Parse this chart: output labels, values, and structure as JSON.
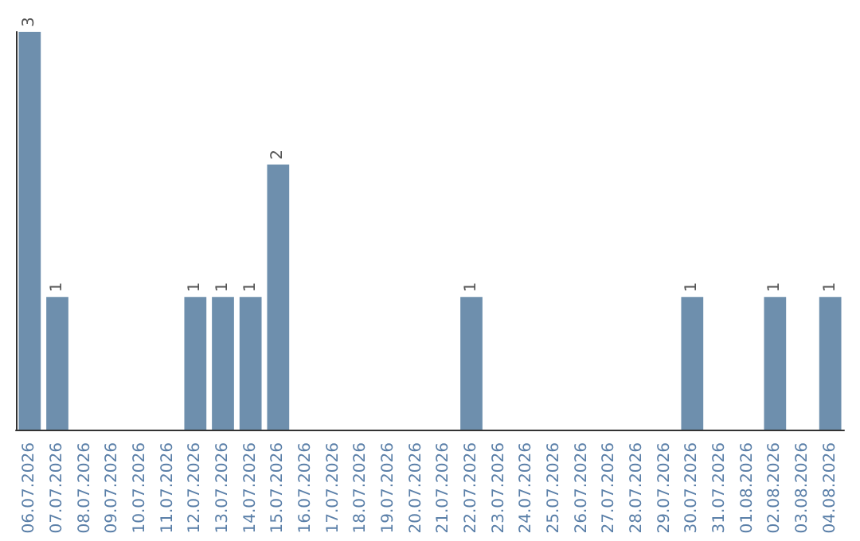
{
  "chart_data": {
    "type": "bar",
    "categories": [
      "06.07.2026",
      "07.07.2026",
      "08.07.2026",
      "09.07.2026",
      "10.07.2026",
      "11.07.2026",
      "12.07.2026",
      "13.07.2026",
      "14.07.2026",
      "15.07.2026",
      "16.07.2026",
      "17.07.2026",
      "18.07.2026",
      "19.07.2026",
      "20.07.2026",
      "21.07.2026",
      "22.07.2026",
      "23.07.2026",
      "24.07.2026",
      "25.07.2026",
      "26.07.2026",
      "27.07.2026",
      "28.07.2026",
      "29.07.2026",
      "30.07.2026",
      "31.07.2026",
      "01.08.2026",
      "02.08.2026",
      "03.08.2026",
      "04.08.2026"
    ],
    "values": [
      3,
      1,
      0,
      0,
      0,
      0,
      1,
      1,
      1,
      2,
      0,
      0,
      0,
      0,
      0,
      0,
      1,
      0,
      0,
      0,
      0,
      0,
      0,
      0,
      1,
      0,
      0,
      1,
      0,
      1
    ],
    "value_labels": [
      "3",
      "1",
      null,
      null,
      null,
      null,
      "1",
      "1",
      "1",
      "2",
      null,
      null,
      null,
      null,
      null,
      null,
      "1",
      null,
      null,
      null,
      null,
      null,
      null,
      null,
      "1",
      null,
      null,
      "1",
      null,
      "1"
    ],
    "color": "#6e8fad",
    "ylim": [
      0,
      3
    ],
    "tick_labels": "x"
  }
}
